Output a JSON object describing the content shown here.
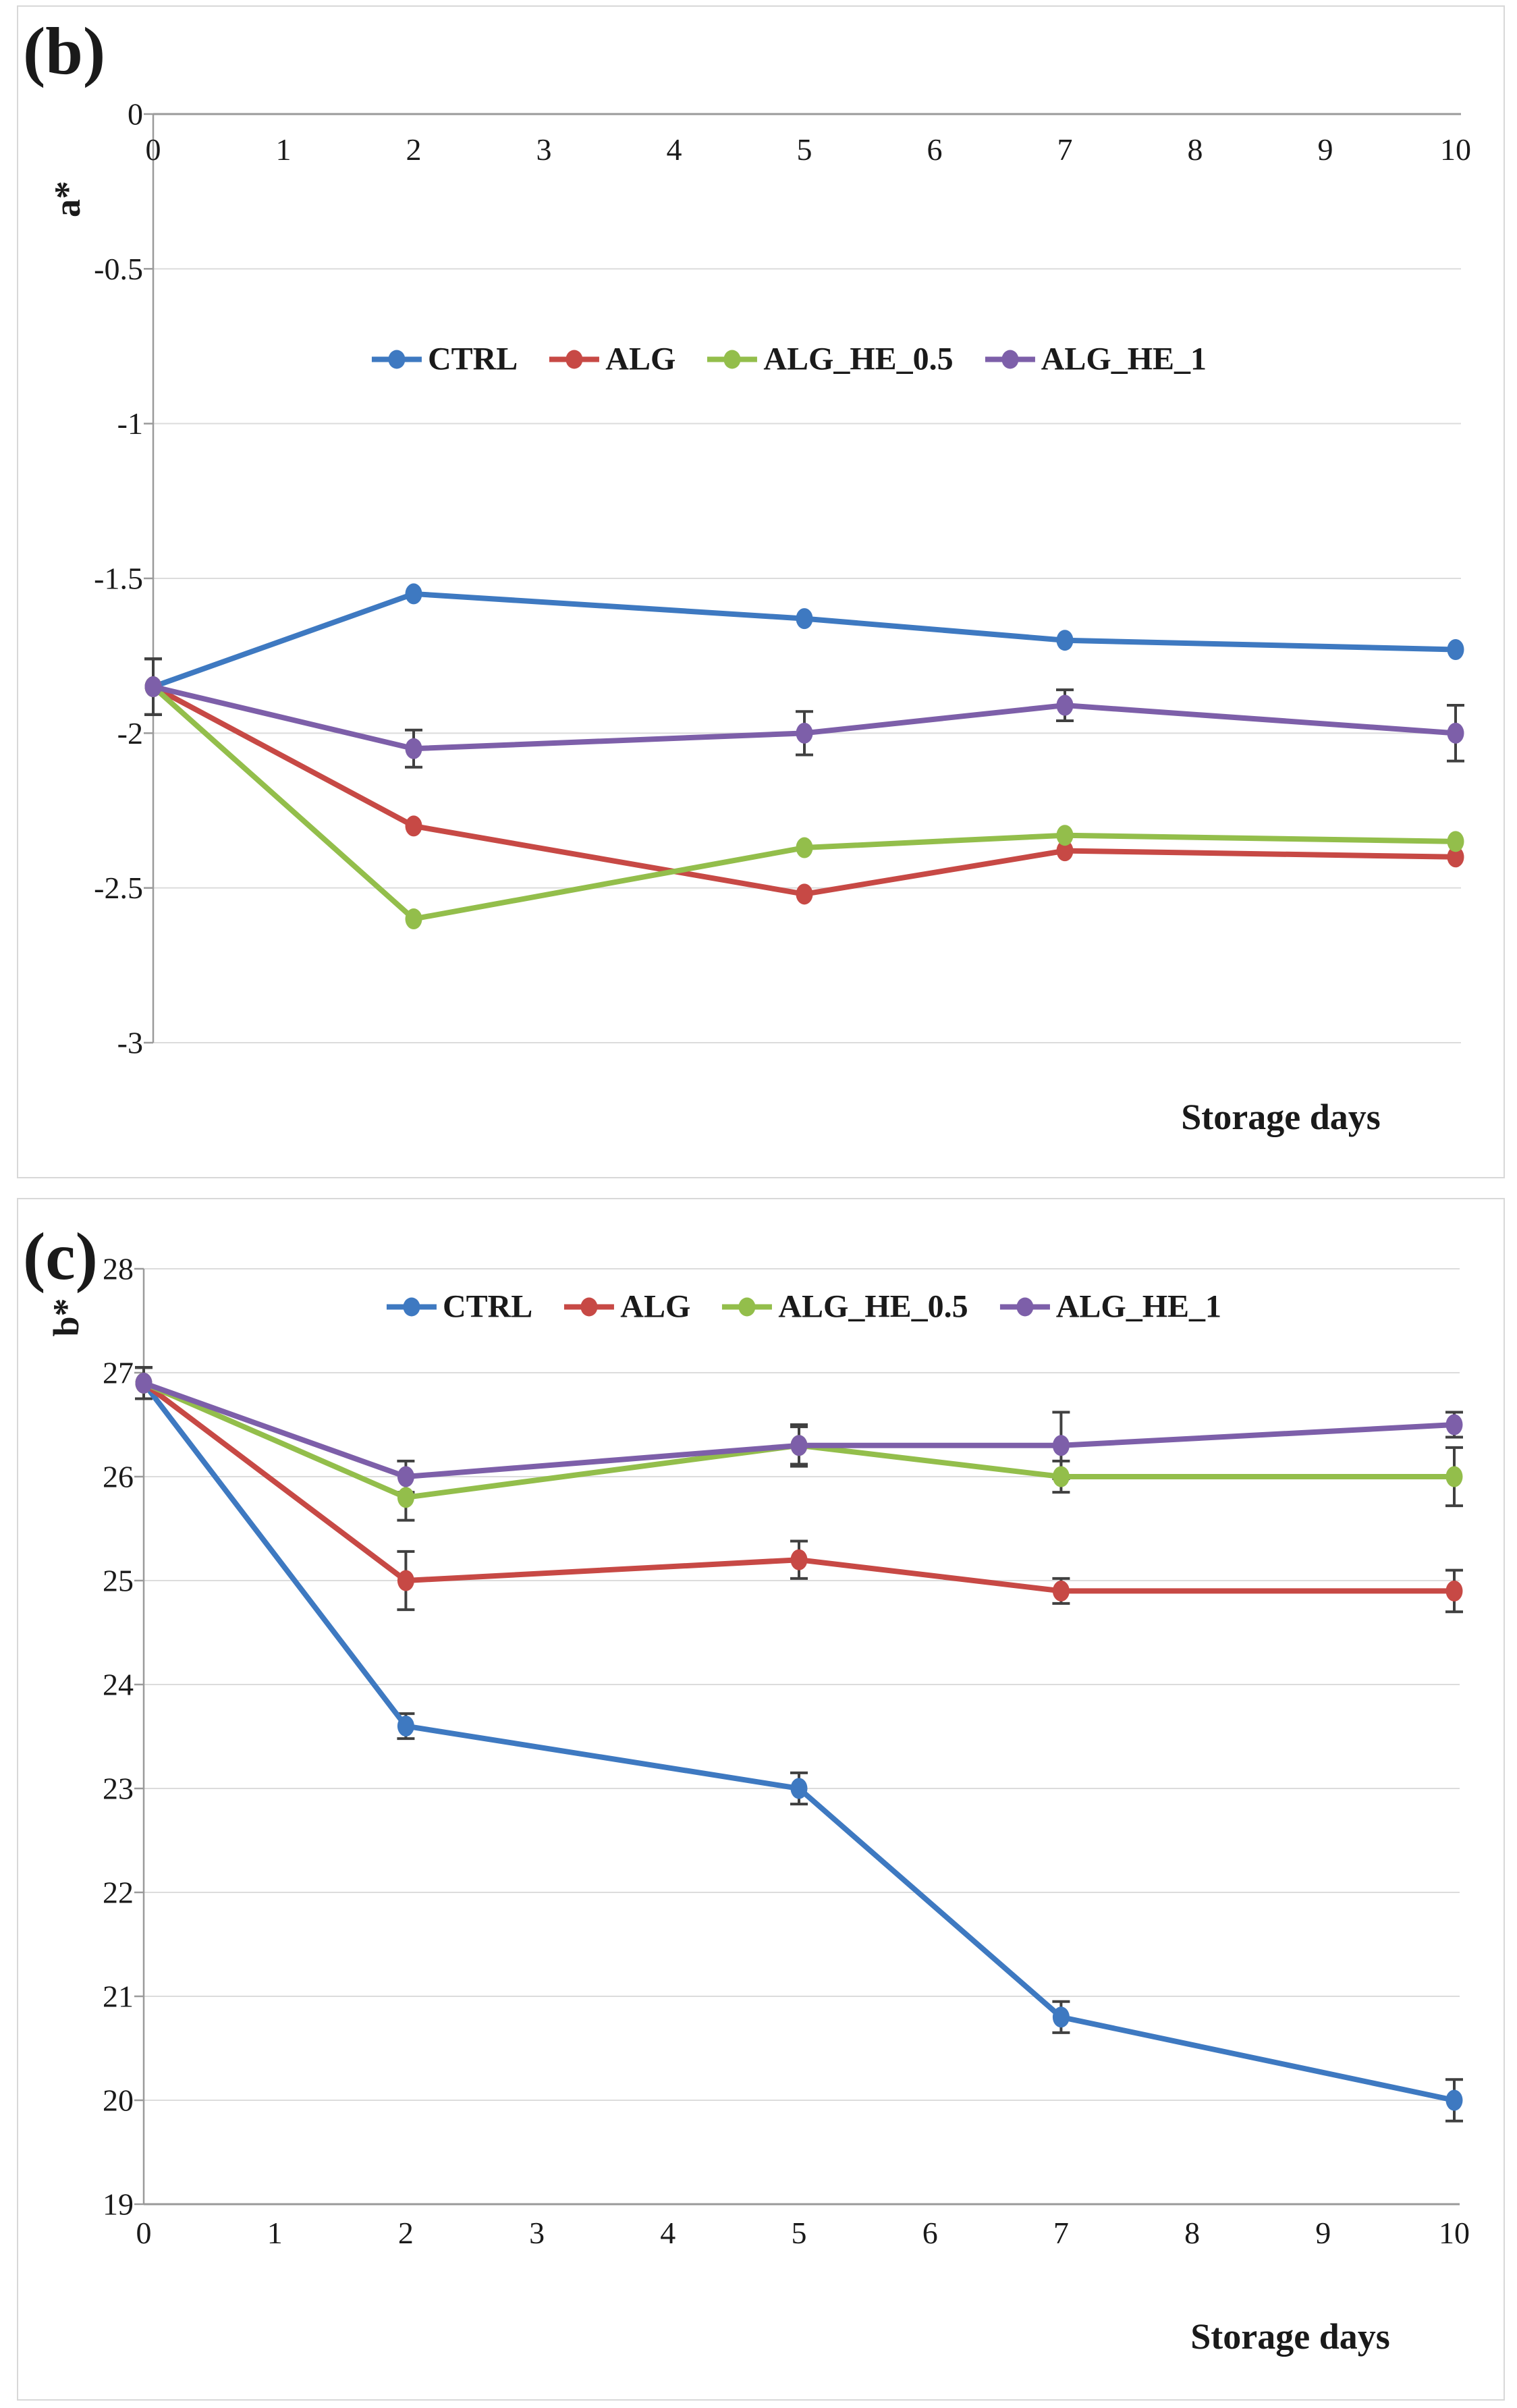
{
  "panels": [
    {
      "label": "(b)"
    },
    {
      "label": "(c)"
    }
  ],
  "colors": {
    "ctrl_blue": "#3E79C1",
    "alg_red": "#C74945",
    "alg_he_05_green": "#93BE4B",
    "alg_he_1_purple": "#7D5FA9",
    "gridline": "#dcdcdc",
    "axis": "#9a9a9a",
    "error_bar": "#404040"
  },
  "chart_data": [
    {
      "type": "line",
      "panel_label": "(b)",
      "title": "",
      "ylabel": "a*",
      "xlabel": "Storage days",
      "x": [
        0,
        2,
        5,
        7,
        10
      ],
      "xticks": [
        0,
        1,
        2,
        3,
        4,
        5,
        6,
        7,
        8,
        9,
        10
      ],
      "yticks": [
        0,
        -0.5,
        -1,
        -1.5,
        -2,
        -2.5,
        -3
      ],
      "xlim": [
        0,
        10
      ],
      "ylim": [
        -3,
        0
      ],
      "grid": true,
      "legend_position": "inside-top-center",
      "error_bars": true,
      "series": [
        {
          "name": "CTRL",
          "color": "#3E79C1",
          "values": [
            -1.85,
            -1.55,
            -1.63,
            -1.7,
            -1.73
          ],
          "errors": [
            0.09,
            0,
            0,
            0,
            0
          ]
        },
        {
          "name": "ALG",
          "color": "#C74945",
          "values": [
            -1.85,
            -2.3,
            -2.52,
            -2.38,
            -2.4
          ],
          "errors": [
            0.09,
            0,
            0,
            0,
            0
          ]
        },
        {
          "name": "ALG_HE_0.5",
          "color": "#93BE4B",
          "values": [
            -1.85,
            -2.6,
            -2.37,
            -2.33,
            -2.35
          ],
          "errors": [
            0.09,
            0,
            0,
            0,
            0
          ]
        },
        {
          "name": "ALG_HE_1",
          "color": "#7D5FA9",
          "values": [
            -1.85,
            -2.05,
            -2.0,
            -1.91,
            -2.0
          ],
          "errors": [
            0.09,
            0.06,
            0.07,
            0.05,
            0.09
          ]
        }
      ]
    },
    {
      "type": "line",
      "panel_label": "(c)",
      "title": "",
      "ylabel": "b*",
      "xlabel": "Storage days",
      "x": [
        0,
        2,
        5,
        7,
        10
      ],
      "xticks": [
        0,
        1,
        2,
        3,
        4,
        5,
        6,
        7,
        8,
        9,
        10
      ],
      "yticks": [
        28,
        27,
        26,
        25,
        24,
        23,
        22,
        21,
        20,
        19
      ],
      "xlim": [
        0,
        10
      ],
      "ylim": [
        19,
        28
      ],
      "grid": true,
      "legend_position": "inside-top-center",
      "error_bars": true,
      "series": [
        {
          "name": "CTRL",
          "color": "#3E79C1",
          "values": [
            26.9,
            23.6,
            23.0,
            20.8,
            20.0
          ],
          "errors": [
            0.15,
            0.12,
            0.15,
            0.15,
            0.2
          ]
        },
        {
          "name": "ALG",
          "color": "#C74945",
          "values": [
            26.9,
            25.0,
            25.2,
            24.9,
            24.9
          ],
          "errors": [
            0.15,
            0.28,
            0.18,
            0.12,
            0.2
          ]
        },
        {
          "name": "ALG_HE_0.5",
          "color": "#93BE4B",
          "values": [
            26.9,
            25.8,
            26.3,
            26.0,
            26.0
          ],
          "errors": [
            0.15,
            0.22,
            0.18,
            0.15,
            0.28
          ]
        },
        {
          "name": "ALG_HE_1",
          "color": "#7D5FA9",
          "values": [
            26.9,
            26.0,
            26.3,
            26.3,
            26.5
          ],
          "errors": [
            0.15,
            0.15,
            0.2,
            0.32,
            0.12
          ]
        }
      ]
    }
  ]
}
